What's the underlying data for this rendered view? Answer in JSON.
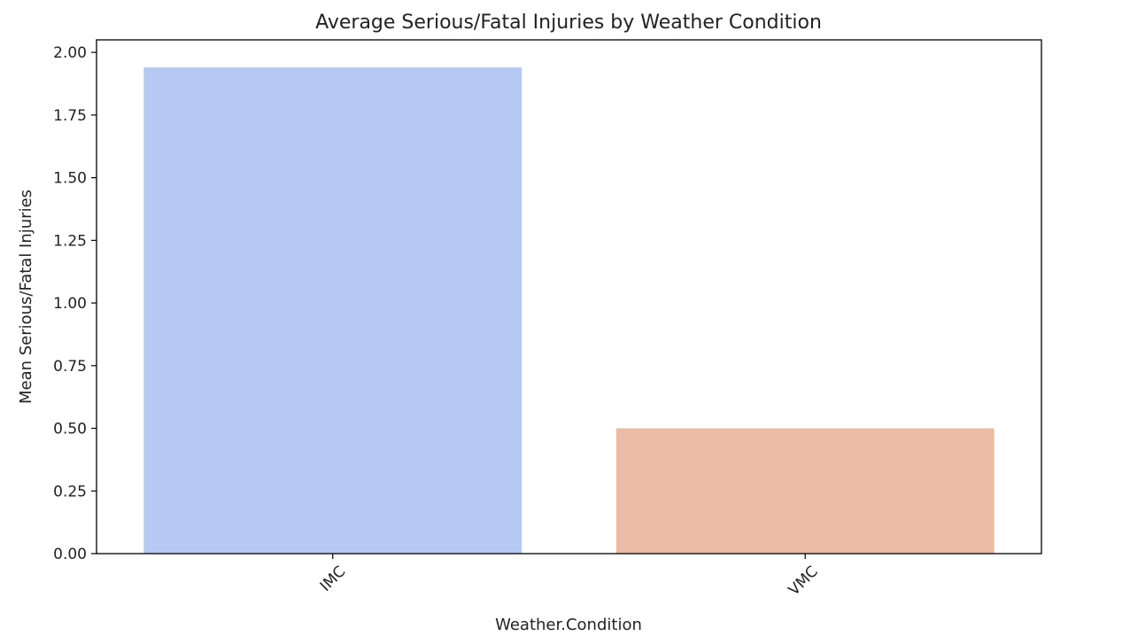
{
  "chart_data": {
    "type": "bar",
    "title": "Average Serious/Fatal Injuries by Weather Condition",
    "xlabel": "Weather.Condition",
    "ylabel": "Mean Serious/Fatal Injuries",
    "categories": [
      "IMC",
      "VMC"
    ],
    "values": [
      1.94,
      0.5
    ],
    "colors": [
      "#b5c9f2",
      "#ebbba5"
    ],
    "ylim": [
      0,
      2.05
    ],
    "yticks": [
      0.0,
      0.25,
      0.5,
      0.75,
      1.0,
      1.25,
      1.5,
      1.75,
      2.0
    ],
    "ytick_labels": [
      "0.00",
      "0.25",
      "0.50",
      "0.75",
      "1.00",
      "1.25",
      "1.50",
      "1.75",
      "2.00"
    ],
    "xtick_rotation": "45 degrees",
    "grid": false,
    "legend": "none"
  }
}
